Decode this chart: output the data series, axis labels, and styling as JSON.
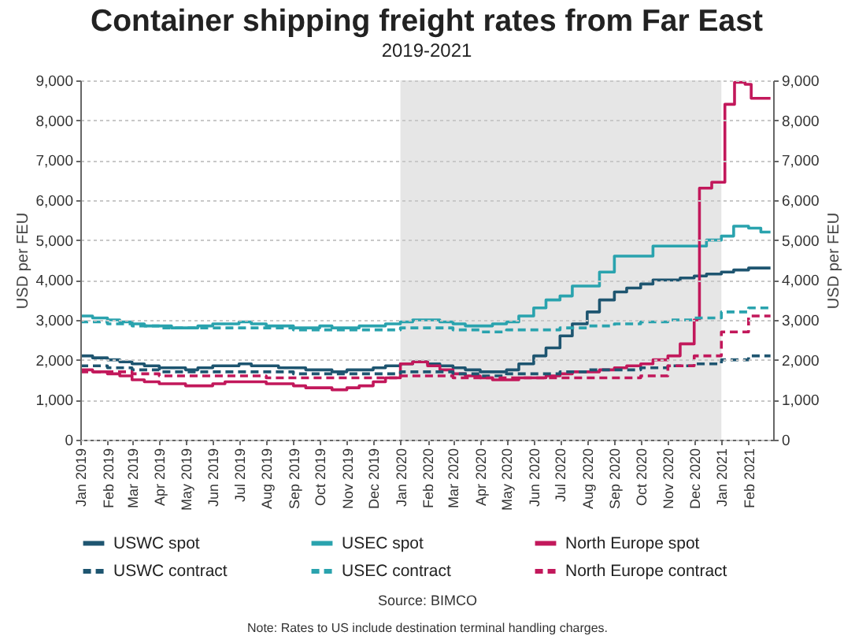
{
  "chart_data": {
    "type": "step",
    "title": "Container shipping freight rates from Far East",
    "subtitle": "2019-2021",
    "ylabel": "USD per FEU",
    "y2label": "USD per FEU",
    "annotations": [
      "Source: BIMCO",
      "Note: Rates to US include destination terminal handling charges."
    ],
    "series": [
      {
        "name": "USWC spot",
        "color": "#1e5570",
        "line_style": "solid",
        "x": [
          "2019-01-01",
          "2019-01-15",
          "2019-02-01",
          "2019-02-15",
          "2019-03-01",
          "2019-03-15",
          "2019-04-01",
          "2019-04-15",
          "2019-05-01",
          "2019-05-15",
          "2019-06-01",
          "2019-06-15",
          "2019-07-01",
          "2019-07-15",
          "2019-08-01",
          "2019-08-15",
          "2019-09-01",
          "2019-09-15",
          "2019-10-01",
          "2019-10-15",
          "2019-11-01",
          "2019-11-15",
          "2019-12-01",
          "2019-12-15",
          "2020-01-01",
          "2020-01-15",
          "2020-02-01",
          "2020-02-15",
          "2020-03-01",
          "2020-03-15",
          "2020-04-01",
          "2020-04-15",
          "2020-05-01",
          "2020-05-15",
          "2020-06-01",
          "2020-06-15",
          "2020-07-01",
          "2020-07-15",
          "2020-08-01",
          "2020-08-15",
          "2020-09-01",
          "2020-09-15",
          "2020-10-01",
          "2020-10-15",
          "2020-11-01",
          "2020-11-15",
          "2020-12-01",
          "2020-12-15",
          "2021-01-01",
          "2021-01-15",
          "2021-02-01",
          "2021-02-15",
          "2021-02-26"
        ],
        "values": [
          2100,
          2050,
          2000,
          1950,
          1900,
          1850,
          1800,
          1800,
          1750,
          1800,
          1850,
          1850,
          1900,
          1850,
          1850,
          1800,
          1800,
          1750,
          1750,
          1700,
          1750,
          1750,
          1800,
          1850,
          1900,
          1950,
          1900,
          1850,
          1800,
          1750,
          1700,
          1700,
          1750,
          1900,
          2100,
          2300,
          2600,
          2900,
          3200,
          3500,
          3700,
          3800,
          3900,
          4000,
          4000,
          4050,
          4100,
          4150,
          4200,
          4250,
          4300,
          4300,
          4300
        ]
      },
      {
        "name": "USEC spot",
        "color": "#2aa3ae",
        "line_style": "solid",
        "x": [
          "2019-01-01",
          "2019-01-15",
          "2019-02-01",
          "2019-02-15",
          "2019-03-01",
          "2019-03-15",
          "2019-04-01",
          "2019-04-15",
          "2019-05-01",
          "2019-05-15",
          "2019-06-01",
          "2019-06-15",
          "2019-07-01",
          "2019-07-15",
          "2019-08-01",
          "2019-08-15",
          "2019-09-01",
          "2019-09-15",
          "2019-10-01",
          "2019-10-15",
          "2019-11-01",
          "2019-11-15",
          "2019-12-01",
          "2019-12-15",
          "2020-01-01",
          "2020-01-15",
          "2020-02-01",
          "2020-02-15",
          "2020-03-01",
          "2020-03-15",
          "2020-04-01",
          "2020-04-15",
          "2020-05-01",
          "2020-05-15",
          "2020-06-01",
          "2020-06-15",
          "2020-07-01",
          "2020-07-15",
          "2020-08-01",
          "2020-08-15",
          "2020-09-01",
          "2020-09-15",
          "2020-10-01",
          "2020-10-15",
          "2020-11-01",
          "2020-11-15",
          "2020-12-01",
          "2020-12-15",
          "2021-01-01",
          "2021-01-15",
          "2021-02-01",
          "2021-02-15",
          "2021-02-26"
        ],
        "values": [
          3100,
          3050,
          3000,
          2950,
          2900,
          2850,
          2850,
          2800,
          2800,
          2850,
          2900,
          2900,
          2950,
          2900,
          2850,
          2850,
          2800,
          2800,
          2850,
          2800,
          2800,
          2850,
          2850,
          2900,
          2950,
          3000,
          3000,
          2950,
          2900,
          2850,
          2850,
          2900,
          2950,
          3100,
          3300,
          3500,
          3600,
          3850,
          3850,
          4200,
          4600,
          4600,
          4600,
          4850,
          4850,
          4850,
          4850,
          5000,
          5100,
          5350,
          5300,
          5200,
          5200
        ]
      },
      {
        "name": "North Europe spot",
        "color": "#c2185b",
        "line_style": "solid",
        "x": [
          "2019-01-01",
          "2019-01-15",
          "2019-02-01",
          "2019-02-15",
          "2019-03-01",
          "2019-03-15",
          "2019-04-01",
          "2019-04-15",
          "2019-05-01",
          "2019-05-15",
          "2019-06-01",
          "2019-06-15",
          "2019-07-01",
          "2019-07-15",
          "2019-08-01",
          "2019-08-15",
          "2019-09-01",
          "2019-09-15",
          "2019-10-01",
          "2019-10-15",
          "2019-11-01",
          "2019-11-15",
          "2019-12-01",
          "2019-12-15",
          "2020-01-01",
          "2020-01-15",
          "2020-02-01",
          "2020-02-15",
          "2020-03-01",
          "2020-03-15",
          "2020-04-01",
          "2020-04-15",
          "2020-05-01",
          "2020-05-15",
          "2020-06-01",
          "2020-06-15",
          "2020-07-01",
          "2020-07-15",
          "2020-08-01",
          "2020-08-15",
          "2020-09-01",
          "2020-09-15",
          "2020-10-01",
          "2020-10-15",
          "2020-11-01",
          "2020-11-15",
          "2020-12-01",
          "2020-12-07",
          "2020-12-21",
          "2021-01-05",
          "2021-01-16",
          "2021-01-28",
          "2021-02-04",
          "2021-02-26"
        ],
        "values": [
          1750,
          1700,
          1650,
          1600,
          1500,
          1450,
          1400,
          1400,
          1350,
          1350,
          1400,
          1450,
          1450,
          1450,
          1400,
          1400,
          1350,
          1300,
          1300,
          1250,
          1300,
          1350,
          1450,
          1550,
          1900,
          1950,
          1850,
          1750,
          1650,
          1600,
          1550,
          1500,
          1500,
          1550,
          1550,
          1600,
          1650,
          1700,
          1700,
          1750,
          1800,
          1850,
          1900,
          2000,
          2100,
          2400,
          3000,
          6300,
          6450,
          8400,
          8950,
          8900,
          8550,
          8550
        ]
      },
      {
        "name": "USWC contract",
        "color": "#1e5570",
        "line_style": "dashed",
        "x": [
          "2019-01",
          "2019-02",
          "2019-03",
          "2019-04",
          "2019-05",
          "2019-06",
          "2019-07",
          "2019-08",
          "2019-09",
          "2019-10",
          "2019-11",
          "2019-12",
          "2020-01",
          "2020-02",
          "2020-03",
          "2020-04",
          "2020-05",
          "2020-06",
          "2020-07",
          "2020-08",
          "2020-09",
          "2020-10",
          "2020-11",
          "2020-12",
          "2021-01",
          "2021-02",
          "2021-02-26"
        ],
        "values": [
          1850,
          1800,
          1750,
          1700,
          1700,
          1700,
          1700,
          1700,
          1650,
          1650,
          1650,
          1650,
          1700,
          1700,
          1650,
          1600,
          1650,
          1650,
          1700,
          1750,
          1750,
          1800,
          1850,
          1900,
          2000,
          2100,
          2100
        ]
      },
      {
        "name": "USEC contract",
        "color": "#2aa3ae",
        "line_style": "dashed",
        "x": [
          "2019-01",
          "2019-02",
          "2019-03",
          "2019-04",
          "2019-05",
          "2019-06",
          "2019-07",
          "2019-08",
          "2019-09",
          "2019-10",
          "2019-11",
          "2019-12",
          "2020-01",
          "2020-02",
          "2020-03",
          "2020-04",
          "2020-05",
          "2020-06",
          "2020-07",
          "2020-08",
          "2020-09",
          "2020-10",
          "2020-11",
          "2020-12",
          "2021-01",
          "2021-02",
          "2021-02-26"
        ],
        "values": [
          2950,
          2900,
          2850,
          2800,
          2800,
          2800,
          2800,
          2800,
          2750,
          2750,
          2750,
          2750,
          2800,
          2800,
          2750,
          2700,
          2750,
          2750,
          2800,
          2850,
          2900,
          2950,
          3000,
          3050,
          3200,
          3300,
          3300
        ]
      },
      {
        "name": "North Europe contract",
        "color": "#c2185b",
        "line_style": "dashed",
        "x": [
          "2019-01",
          "2019-02",
          "2019-03",
          "2019-04",
          "2019-05",
          "2019-06",
          "2019-07",
          "2019-08",
          "2019-09",
          "2019-10",
          "2019-11",
          "2019-12",
          "2020-01",
          "2020-02",
          "2020-03",
          "2020-04",
          "2020-05",
          "2020-06",
          "2020-07",
          "2020-08",
          "2020-09",
          "2020-10",
          "2020-11",
          "2020-12",
          "2021-01",
          "2021-02",
          "2021-02-26"
        ],
        "values": [
          1700,
          1700,
          1650,
          1600,
          1600,
          1600,
          1600,
          1550,
          1550,
          1550,
          1550,
          1550,
          1600,
          1600,
          1550,
          1550,
          1550,
          1550,
          1550,
          1550,
          1550,
          1600,
          1850,
          2100,
          2700,
          3100,
          3100
        ]
      }
    ],
    "xlim": [
      "2019-01-01",
      "2021-03-01"
    ],
    "xticks": [
      {
        "value": "2019-01",
        "label": "Jan 2019"
      },
      {
        "value": "2019-02",
        "label": "Feb 2019"
      },
      {
        "value": "2019-03",
        "label": "Mar 2019"
      },
      {
        "value": "2019-04",
        "label": "Apr 2019"
      },
      {
        "value": "2019-05",
        "label": "May 2019"
      },
      {
        "value": "2019-06",
        "label": "Jun 2019"
      },
      {
        "value": "2019-07",
        "label": "Jul 2019"
      },
      {
        "value": "2019-08",
        "label": "Aug 2019"
      },
      {
        "value": "2019-09",
        "label": "Sep 2019"
      },
      {
        "value": "2019-10",
        "label": "Oct 2019"
      },
      {
        "value": "2019-11",
        "label": "Nov 2019"
      },
      {
        "value": "2019-12",
        "label": "Dec 2019"
      },
      {
        "value": "2020-01",
        "label": "Jan 2020"
      },
      {
        "value": "2020-02",
        "label": "Feb 2020"
      },
      {
        "value": "2020-03",
        "label": "Mar 2020"
      },
      {
        "value": "2020-04",
        "label": "Apr 2020"
      },
      {
        "value": "2020-05",
        "label": "May 2020"
      },
      {
        "value": "2020-06",
        "label": "Jun 2020"
      },
      {
        "value": "2020-07",
        "label": "Jul 2020"
      },
      {
        "value": "2020-08",
        "label": "Aug 2020"
      },
      {
        "value": "2020-09",
        "label": "Sep 2020"
      },
      {
        "value": "2020-10",
        "label": "Oct 2020"
      },
      {
        "value": "2020-11",
        "label": "Nov 2020"
      },
      {
        "value": "2020-12",
        "label": "Dec 2020"
      },
      {
        "value": "2021-01",
        "label": "Jan 2021"
      },
      {
        "value": "2021-02",
        "label": "Feb 2021"
      }
    ],
    "ylim": [
      0,
      9000
    ],
    "yticks": [
      0,
      {
        "value": 1000,
        "label": "1,000"
      },
      {
        "value": 2000,
        "label": "2,000"
      },
      {
        "value": 3000,
        "label": "3,000"
      },
      {
        "value": 4000,
        "label": "4,000"
      },
      {
        "value": 5000,
        "label": "5,000"
      },
      {
        "value": 6000,
        "label": "6,000"
      },
      {
        "value": 7000,
        "label": "7,000"
      },
      {
        "value": 8000,
        "label": "8,000"
      },
      {
        "value": 9000,
        "label": "9,000"
      }
    ],
    "y2lim": [
      0,
      9000
    ],
    "y2ticks": [
      0,
      {
        "value": 1000,
        "label": "1,000"
      },
      {
        "value": 2000,
        "label": "2,000"
      },
      {
        "value": 3000,
        "label": "3,000"
      },
      {
        "value": 4000,
        "label": "4,000"
      },
      {
        "value": 5000,
        "label": "5,000"
      },
      {
        "value": 6000,
        "label": "6,000"
      },
      {
        "value": 7000,
        "label": "7,000"
      },
      {
        "value": 8000,
        "label": "8,000"
      },
      {
        "value": 9000,
        "label": "9,000"
      }
    ],
    "bands": [
      {
        "axis": "x",
        "from": "2020-01",
        "to": "2021-01",
        "color": "#e6e6e6"
      }
    ],
    "grid": "y",
    "legend": "bottom"
  }
}
